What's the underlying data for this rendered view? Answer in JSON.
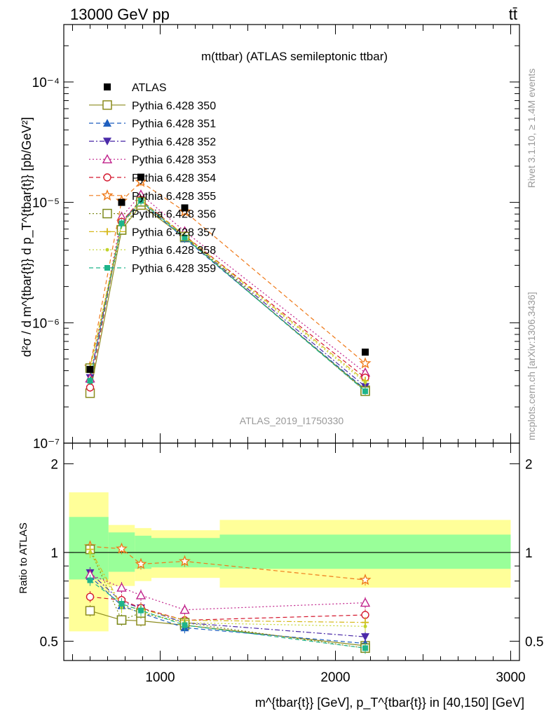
{
  "header": {
    "energy_label": "13000 GeV pp",
    "process_label": "tt̄",
    "plot_title": "m(ttbar) (ATLAS semileptonic ttbar)",
    "analysis_id": "ATLAS_2019_I1750330",
    "side_note_rivet": "Rivet 3.1.10, ≥ 1.4M events",
    "side_note_site": "mcplots.cern.ch [arXiv:1306.3436]"
  },
  "axes": {
    "ylabel_main": "d²σ / d m^{tbar{t}} d p_T^{tbar{t}} [pb/GeV²]",
    "ylabel_ratio": "Ratio to ATLAS",
    "xlabel": "m^{tbar{t}} [GeV], p_T^{tbar{t}} in [40,150] [GeV]",
    "x_ticks": [
      "1000",
      "2000",
      "3000"
    ],
    "y_ticks_main": [
      "10⁻⁷",
      "10⁻⁶",
      "10⁻⁵",
      "10⁻⁴"
    ],
    "y_ticks_ratio": [
      "0.5",
      "1",
      "2"
    ]
  },
  "chart_data": {
    "type": "scatter",
    "x_scale": "linear",
    "y_scale": "log",
    "xlim": [
      450,
      3050
    ],
    "ylim_main": [
      1e-07,
      0.0003
    ],
    "ylim_ratio": [
      0.43,
      2.35
    ],
    "x": [
      600,
      780,
      890,
      1140,
      2170
    ],
    "bin_edges": [
      480,
      705,
      855,
      950,
      1340,
      3000
    ],
    "reference": {
      "name": "ATLAS",
      "values": [
        4.1e-07,
        1e-05,
        1.62e-05,
        9e-06,
        5.7e-07
      ],
      "band_inner": [
        [
          0.81,
          1.32
        ],
        [
          0.86,
          1.17
        ],
        [
          0.88,
          1.14
        ],
        [
          0.89,
          1.12
        ],
        [
          0.88,
          1.15
        ]
      ],
      "band_outer": [
        [
          0.54,
          1.6
        ],
        [
          0.77,
          1.24
        ],
        [
          0.8,
          1.21
        ],
        [
          0.82,
          1.19
        ],
        [
          0.76,
          1.29
        ]
      ]
    },
    "series": [
      {
        "name": "Pythia 6.428 350",
        "color": "#8c8c1e",
        "marker": "square-open",
        "dash": "solid",
        "values": [
          2.6e-07,
          5.9e-06,
          9.5e-06,
          5.1e-06,
          2.75e-07
        ]
      },
      {
        "name": "Pythia 6.428 351",
        "color": "#1f5fbf",
        "marker": "triangle-up",
        "dash": "dashed",
        "values": [
          3.4e-07,
          6.6e-06,
          1.01e-05,
          5e-06,
          2.8e-07
        ]
      },
      {
        "name": "Pythia 6.428 352",
        "color": "#4b2aa8",
        "marker": "triangle-down",
        "dash": "dashdot",
        "values": [
          3.5e-07,
          6.8e-06,
          1.05e-05,
          5.2e-06,
          2.95e-07
        ]
      },
      {
        "name": "Pythia 6.428 353",
        "color": "#c0208a",
        "marker": "triangle-open",
        "dash": "dotted",
        "values": [
          3.45e-07,
          7.6e-06,
          1.16e-05,
          5.75e-06,
          3.85e-07
        ]
      },
      {
        "name": "Pythia 6.428 354",
        "color": "#d4182e",
        "marker": "circle-open",
        "dash": "dashed",
        "values": [
          2.9e-07,
          6.9e-06,
          1.05e-05,
          5.3e-06,
          3.5e-07
        ]
      },
      {
        "name": "Pythia 6.428 355",
        "color": "#ef7a1a",
        "marker": "star",
        "dash": "dashed",
        "values": [
          4.3e-07,
          1.03e-05,
          1.48e-05,
          8.4e-06,
          4.6e-07
        ]
      },
      {
        "name": "Pythia 6.428 356",
        "color": "#7d8a1c",
        "marker": "square-open",
        "dash": "dotted",
        "values": [
          4.2e-07,
          5.9e-06,
          1.01e-05,
          5.2e-06,
          2.7e-07
        ]
      },
      {
        "name": "Pythia 6.428 357",
        "color": "#d6b81a",
        "marker": "cross",
        "dash": "dashdot",
        "values": [
          4.2e-07,
          6.6e-06,
          1.04e-05,
          5.3e-06,
          3.3e-07
        ]
      },
      {
        "name": "Pythia 6.428 358",
        "color": "#c2d42a",
        "marker": "dot",
        "dash": "dotted",
        "values": [
          4.1e-07,
          6.5e-06,
          1.02e-05,
          5.2e-06,
          3.2e-07
        ]
      },
      {
        "name": "Pythia 6.428 359",
        "color": "#1fb48a",
        "marker": "square-filled",
        "dash": "dashed",
        "values": [
          3.3e-07,
          6.7e-06,
          1.03e-05,
          5.1e-06,
          2.7e-07
        ]
      }
    ]
  }
}
